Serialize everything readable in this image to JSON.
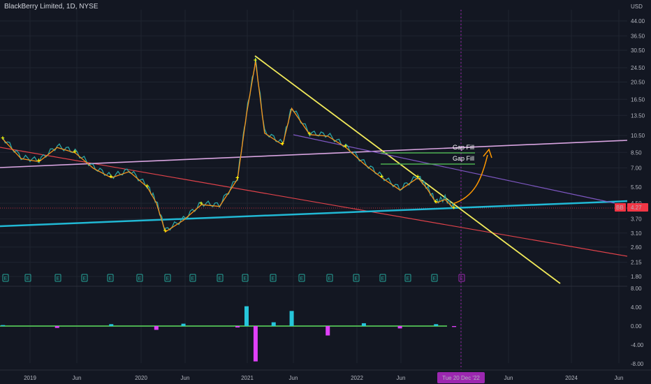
{
  "header": {
    "title": "BlackBerry Limited, 1D, NYSE",
    "currency": "USD"
  },
  "colors": {
    "background": "#131722",
    "grid": "#1f2430",
    "candle_line": "#2aa5a5",
    "ma": "#f7931a",
    "marker": "#ffff00",
    "yellow_trend": "#f2ea5a",
    "pink_line": "#d8a4e0",
    "cyan_line": "#21b8d4",
    "red_line": "#e0424a",
    "purple_line": "#7e57c2",
    "gap_fill": "#4caf50",
    "projection": "#ff9800",
    "badge_bg": "#f23645",
    "crosshair_label": "#9c27b0",
    "osc_pos": "#26c6da",
    "osc_neg": "#e040fb",
    "osc_zero": "#4caf50"
  },
  "chart_data": {
    "type": "line",
    "symbol": "BB",
    "interval": "1D",
    "exchange": "NYSE",
    "y_scale": "log",
    "price_ticks": [
      "44.00",
      "36.50",
      "30.50",
      "24.50",
      "20.50",
      "16.50",
      "13.50",
      "10.50",
      "8.50",
      "7.00",
      "5.50",
      "4.50",
      "3.70",
      "3.10",
      "2.60",
      "2.15",
      "1.80"
    ],
    "osc_ticks": [
      "8.00",
      "4.00",
      "0.00",
      "-4.00",
      "-8.00"
    ],
    "x_labels": [
      "2019",
      "Jun",
      "2020",
      "Jun",
      "2021",
      "Jun",
      "2022",
      "Jun",
      "Tue 20 Dec '22",
      "Jun",
      "2024",
      "Jun"
    ],
    "last_price": {
      "symbol": "BB",
      "value": "4.27"
    },
    "annotations": [
      "Gap Fill",
      "Gap Fill"
    ],
    "earnings_marker": "E",
    "price_series": {
      "x": [
        "2018-10",
        "2018-12",
        "2019-02",
        "2019-04",
        "2019-06",
        "2019-08",
        "2019-10",
        "2019-12",
        "2020-02",
        "2020-03",
        "2020-04",
        "2020-06",
        "2020-08",
        "2020-10",
        "2020-12",
        "2021-01",
        "2021-02",
        "2021-03",
        "2021-05",
        "2021-06",
        "2021-08",
        "2021-10",
        "2021-12",
        "2022-02",
        "2022-04",
        "2022-06",
        "2022-08",
        "2022-09",
        "2022-10",
        "2022-11",
        "2022-12"
      ],
      "y": [
        10.2,
        8.0,
        7.7,
        9.2,
        8.6,
        7.1,
        6.3,
        6.8,
        5.6,
        4.6,
        3.2,
        3.7,
        4.5,
        4.4,
        6.2,
        14.0,
        27.0,
        11.0,
        9.5,
        15.0,
        10.8,
        10.6,
        9.2,
        7.5,
        6.3,
        5.4,
        6.3,
        5.5,
        4.6,
        4.8,
        4.27
      ]
    },
    "oscillator_series": {
      "x": [
        "2018-10",
        "2019-04",
        "2019-10",
        "2020-03",
        "2020-06",
        "2020-12",
        "2021-01",
        "2021-02",
        "2021-04",
        "2021-06",
        "2021-10",
        "2022-02",
        "2022-06",
        "2022-10",
        "2022-12"
      ],
      "y": [
        0.2,
        -0.4,
        0.4,
        -0.8,
        0.5,
        -0.3,
        4.2,
        -7.5,
        0.8,
        3.2,
        -2.0,
        0.6,
        -0.5,
        0.4,
        -0.2
      ]
    }
  }
}
